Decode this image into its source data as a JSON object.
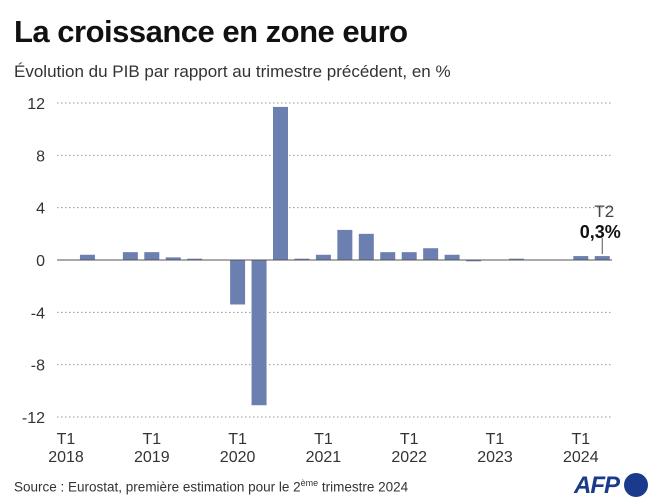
{
  "title": "La croissance en zone euro",
  "subtitle": "Évolution du PIB par rapport au trimestre précédent, en %",
  "source_prefix": "Source : Eurostat, première estimation pour le 2",
  "source_sup": "ème",
  "source_suffix": " trimestre 2024",
  "logo": "AFP",
  "chart_data": {
    "type": "bar",
    "title": "La croissance en zone euro",
    "subtitle": "Évolution du PIB par rapport au trimestre précédent, en %",
    "ylim": [
      -12,
      12
    ],
    "yticks": [
      12,
      8,
      4,
      0,
      -4,
      -8,
      -12
    ],
    "ytick_labels": [
      "12",
      "8",
      "4",
      "0",
      "-4",
      "-8",
      "-12"
    ],
    "grid": true,
    "bar_color": "#6b7fb0",
    "categories": [
      "2018 T1",
      "2018 T2",
      "2018 T3",
      "2018 T4",
      "2019 T1",
      "2019 T2",
      "2019 T3",
      "2019 T4",
      "2020 T1",
      "2020 T2",
      "2020 T3",
      "2020 T4",
      "2021 T1",
      "2021 T2",
      "2021 T3",
      "2021 T4",
      "2022 T1",
      "2022 T2",
      "2022 T3",
      "2022 T4",
      "2023 T1",
      "2023 T2",
      "2023 T3",
      "2023 T4",
      "2024 T1",
      "2024 T2"
    ],
    "values": [
      0.0,
      0.4,
      0.0,
      0.6,
      0.6,
      0.2,
      0.1,
      0.0,
      -3.4,
      -11.1,
      11.7,
      0.1,
      0.4,
      2.3,
      2.0,
      0.6,
      0.6,
      0.9,
      0.4,
      -0.1,
      0.0,
      0.1,
      0.0,
      0.0,
      0.3,
      0.3
    ],
    "x_labels": [
      {
        "index": 0,
        "quarter": "T1",
        "year": "2018"
      },
      {
        "index": 4,
        "quarter": "T1",
        "year": "2019"
      },
      {
        "index": 8,
        "quarter": "T1",
        "year": "2020"
      },
      {
        "index": 12,
        "quarter": "T1",
        "year": "2021"
      },
      {
        "index": 16,
        "quarter": "T1",
        "year": "2022"
      },
      {
        "index": 20,
        "quarter": "T1",
        "year": "2023"
      },
      {
        "index": 24,
        "quarter": "T1",
        "year": "2024"
      }
    ],
    "annotation": {
      "index": 25,
      "label": "T2",
      "value": "0,3%"
    }
  }
}
